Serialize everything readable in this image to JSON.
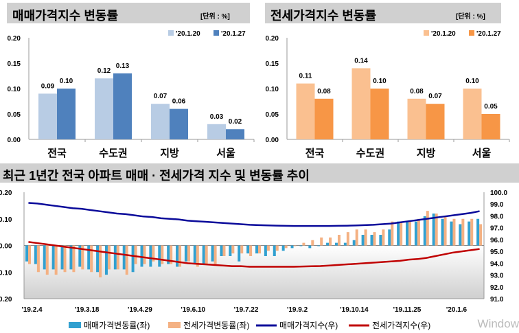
{
  "chart_data": [
    {
      "type": "bar",
      "title": "매매가격지수 변동률",
      "unit": "[단위 : %]",
      "categories": [
        "전국",
        "수도권",
        "지방",
        "서울"
      ],
      "ylim": [
        0,
        0.2
      ],
      "yticks": [
        "0.20",
        "0.15",
        "0.10",
        "0.05",
        "0.00"
      ],
      "legend": "top-right",
      "series": [
        {
          "name": "'20.1.20",
          "color": "#b8cce4",
          "values": [
            0.09,
            0.12,
            0.07,
            0.03
          ]
        },
        {
          "name": "'20.1.27",
          "color": "#4f81bd",
          "values": [
            0.1,
            0.13,
            0.06,
            0.02
          ]
        }
      ]
    },
    {
      "type": "bar",
      "title": "전세가격지수 변동률",
      "unit": "[단위 : %]",
      "categories": [
        "전국",
        "수도권",
        "지방",
        "서울"
      ],
      "ylim": [
        0,
        0.2
      ],
      "yticks": [
        "0.20",
        "0.15",
        "0.10",
        "0.05",
        "0.00"
      ],
      "legend": "top-right",
      "series": [
        {
          "name": "'20.1.20",
          "color": "#fac090",
          "values": [
            0.11,
            0.14,
            0.08,
            0.1
          ]
        },
        {
          "name": "'20.1.27",
          "color": "#f79646",
          "values": [
            0.08,
            0.1,
            0.07,
            0.05
          ]
        }
      ]
    },
    {
      "type": "bar+line",
      "title": "최근 1년간 전국 아파트 매매 · 전세가격 지수 및 변동률 추이",
      "ylim_left": [
        -0.2,
        0.2
      ],
      "ylim_right": [
        91,
        100
      ],
      "yticks_left": [
        "0.20",
        "0.10",
        "0.00",
        "0.10",
        "0.20"
      ],
      "yticks_right": [
        "100.0",
        "99.0",
        "98.0",
        "97.0",
        "96.0",
        "95.0",
        "94.0",
        "93.0",
        "92.0",
        "91.0"
      ],
      "xticks": [
        "'19.2.4",
        "'19.3.18",
        "'19.4.29",
        "'19.6.10",
        "'19.7.22",
        "'19.9.2",
        "'19.10.14",
        "'19.11.25",
        "'20.1.6"
      ],
      "legend": "bottom",
      "series": [
        {
          "name": "매매가격변동률(좌)",
          "axis": "left",
          "kind": "bar",
          "color": "#31a0d0",
          "values": [
            -0.06,
            -0.07,
            -0.09,
            -0.09,
            -0.09,
            -0.09,
            -0.08,
            -0.09,
            -0.1,
            -0.11,
            -0.09,
            -0.09,
            -0.1,
            -0.08,
            -0.08,
            -0.08,
            -0.07,
            -0.08,
            -0.06,
            -0.07,
            -0.07,
            -0.06,
            -0.04,
            -0.04,
            -0.06,
            -0.03,
            -0.03,
            -0.04,
            -0.04,
            -0.02,
            -0.01,
            0.0,
            -0.01,
            0.0,
            0.01,
            0.01,
            0.01,
            0.02,
            0.04,
            0.04,
            0.04,
            0.06,
            0.09,
            0.09,
            0.09,
            0.11,
            0.12,
            0.1,
            0.09,
            0.08,
            0.09,
            0.1
          ]
        },
        {
          "name": "전세가격변동률(좌)",
          "axis": "left",
          "kind": "bar",
          "color": "#f4b183",
          "values": [
            -0.07,
            -0.1,
            -0.11,
            -0.11,
            -0.1,
            -0.1,
            -0.09,
            -0.1,
            -0.12,
            -0.09,
            -0.09,
            -0.11,
            -0.07,
            -0.07,
            -0.06,
            -0.07,
            -0.07,
            -0.08,
            -0.06,
            -0.08,
            -0.07,
            -0.07,
            -0.04,
            -0.03,
            -0.03,
            -0.04,
            -0.03,
            -0.02,
            -0.02,
            -0.01,
            0.0,
            0.01,
            0.02,
            0.03,
            0.03,
            0.04,
            0.05,
            0.06,
            0.06,
            0.05,
            0.06,
            0.09,
            0.09,
            0.09,
            0.1,
            0.13,
            0.12,
            0.11,
            0.1,
            0.1,
            0.1,
            0.08
          ]
        },
        {
          "name": "매매가격지수(우)",
          "axis": "right",
          "kind": "line",
          "color": "#0a0a9a",
          "values": [
            99.1,
            99.05,
            98.95,
            98.85,
            98.75,
            98.65,
            98.6,
            98.5,
            98.4,
            98.3,
            98.2,
            98.15,
            98.05,
            97.95,
            97.9,
            97.8,
            97.75,
            97.7,
            97.6,
            97.55,
            97.5,
            97.45,
            97.4,
            97.35,
            97.3,
            97.25,
            97.22,
            97.2,
            97.18,
            97.16,
            97.15,
            97.15,
            97.15,
            97.15,
            97.15,
            97.16,
            97.17,
            97.19,
            97.22,
            97.25,
            97.3,
            97.35,
            97.45,
            97.55,
            97.65,
            97.75,
            97.85,
            97.95,
            98.05,
            98.15,
            98.25,
            98.4
          ]
        },
        {
          "name": "전세가격지수(우)",
          "axis": "right",
          "kind": "line",
          "color": "#c00000",
          "values": [
            95.8,
            95.7,
            95.6,
            95.5,
            95.4,
            95.3,
            95.2,
            95.1,
            95.0,
            94.9,
            94.8,
            94.7,
            94.6,
            94.5,
            94.4,
            94.3,
            94.2,
            94.1,
            94.0,
            93.95,
            93.9,
            93.85,
            93.8,
            93.75,
            93.75,
            93.7,
            93.7,
            93.7,
            93.7,
            93.7,
            93.7,
            93.72,
            93.74,
            93.76,
            93.8,
            93.85,
            93.9,
            93.95,
            94.0,
            94.05,
            94.1,
            94.15,
            94.2,
            94.3,
            94.35,
            94.45,
            94.6,
            94.75,
            94.9,
            95.0,
            95.1,
            95.2
          ]
        }
      ]
    }
  ],
  "watermark": "Window"
}
